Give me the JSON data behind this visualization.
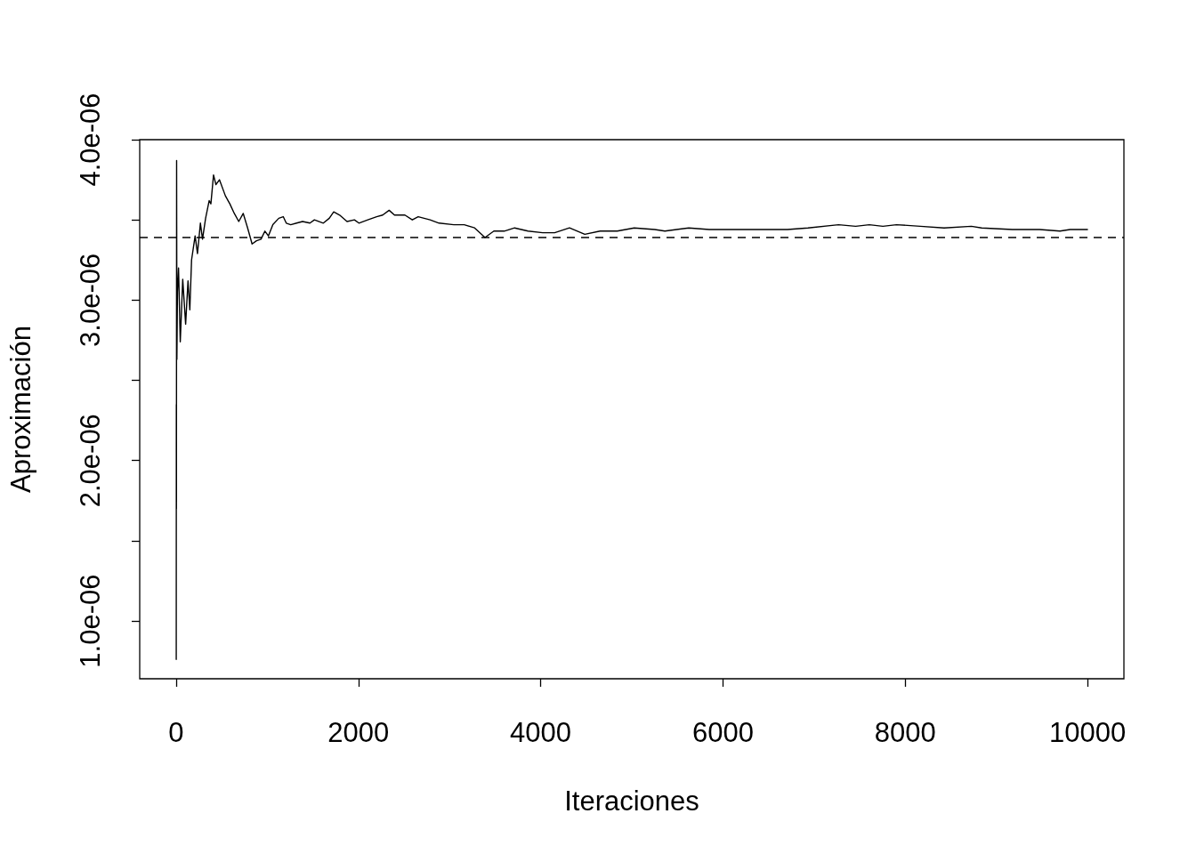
{
  "chart_data": {
    "type": "line",
    "xlabel": "Iteraciones",
    "ylabel": "Aproximación",
    "xlim": [
      -400,
      10400
    ],
    "xticks": [
      0,
      2000,
      4000,
      6000,
      8000,
      10000
    ],
    "ylim": [
      6.4e-07,
      4e-06
    ],
    "yticks": [
      {
        "value": 1e-06,
        "label": "1.0e-06"
      },
      {
        "value": 1.5e-06,
        "label": null
      },
      {
        "value": 2e-06,
        "label": "2.0e-06"
      },
      {
        "value": 2.5e-06,
        "label": null
      },
      {
        "value": 3e-06,
        "label": "3.0e-06"
      },
      {
        "value": 3.5e-06,
        "label": null
      },
      {
        "value": 4e-06,
        "label": "4.0e-06"
      }
    ],
    "grid": false,
    "marker": "none",
    "line_style": "solid",
    "x": [
      1,
      2,
      3,
      5,
      8,
      14,
      26,
      45,
      72,
      104,
      130,
      150,
      169,
      208,
      234,
      266,
      289,
      323,
      362,
      381,
      410,
      436,
      475,
      540,
      589,
      638,
      687,
      736,
      784,
      833,
      882,
      931,
      974,
      1012,
      1061,
      1126,
      1175,
      1208,
      1257,
      1322,
      1387,
      1468,
      1517,
      1615,
      1680,
      1729,
      1794,
      1875,
      1956,
      2005,
      2103,
      2200,
      2266,
      2337,
      2396,
      2510,
      2591,
      2656,
      2786,
      2884,
      3047,
      3161,
      3275,
      3389,
      3486,
      3600,
      3714,
      3861,
      4023,
      4153,
      4316,
      4484,
      4652,
      4840,
      5026,
      5251,
      5363,
      5625,
      5849,
      6110,
      6409,
      6708,
      6933,
      7269,
      7456,
      7606,
      7755,
      7904,
      8166,
      8427,
      8726,
      8839,
      9175,
      9474,
      9698,
      9810,
      10000
    ],
    "series": [
      {
        "color": "#000000",
        "values": [
          7.6e-07,
          2.35e-06,
          1.7e-06,
          3.87e-06,
          2.63e-06,
          3.05e-06,
          3.2e-06,
          2.74e-06,
          3.13e-06,
          2.85e-06,
          3.12e-06,
          2.94e-06,
          3.25e-06,
          3.4e-06,
          3.29e-06,
          3.48e-06,
          3.38e-06,
          3.51e-06,
          3.62e-06,
          3.6e-06,
          3.78e-06,
          3.72e-06,
          3.75e-06,
          3.65e-06,
          3.6e-06,
          3.54e-06,
          3.49e-06,
          3.54e-06,
          3.45e-06,
          3.35e-06,
          3.37e-06,
          3.38e-06,
          3.43e-06,
          3.4e-06,
          3.47e-06,
          3.51e-06,
          3.52e-06,
          3.48e-06,
          3.47e-06,
          3.48e-06,
          3.49e-06,
          3.48e-06,
          3.5e-06,
          3.48e-06,
          3.51e-06,
          3.55e-06,
          3.53e-06,
          3.49e-06,
          3.5e-06,
          3.48e-06,
          3.5e-06,
          3.52e-06,
          3.53e-06,
          3.56e-06,
          3.53e-06,
          3.53e-06,
          3.5e-06,
          3.52e-06,
          3.5e-06,
          3.48e-06,
          3.47e-06,
          3.47e-06,
          3.45e-06,
          3.39e-06,
          3.43e-06,
          3.43e-06,
          3.45e-06,
          3.43e-06,
          3.42e-06,
          3.42e-06,
          3.45e-06,
          3.41e-06,
          3.43e-06,
          3.43e-06,
          3.45e-06,
          3.44e-06,
          3.43e-06,
          3.45e-06,
          3.44e-06,
          3.44e-06,
          3.44e-06,
          3.44e-06,
          3.45e-06,
          3.47e-06,
          3.46e-06,
          3.47e-06,
          3.46e-06,
          3.47e-06,
          3.46e-06,
          3.45e-06,
          3.46e-06,
          3.45e-06,
          3.44e-06,
          3.44e-06,
          3.43e-06,
          3.44e-06,
          3.44e-06
        ]
      }
    ],
    "ref_lines": [
      {
        "axis": "y",
        "value": 3.39e-06,
        "color": "#000000",
        "line_style": "dashed"
      }
    ]
  }
}
